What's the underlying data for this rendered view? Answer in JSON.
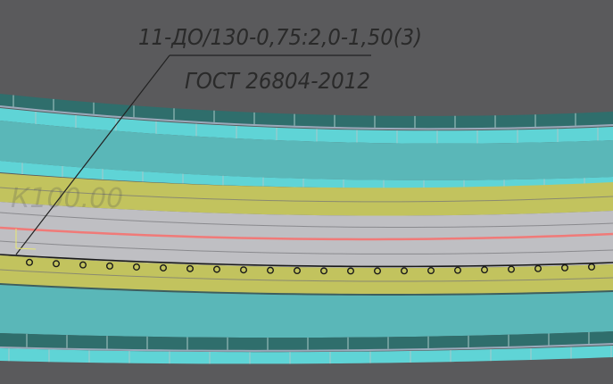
{
  "drawing": {
    "callout_line1": "11-ДО/130-0,75:2,0-1,50(3)",
    "callout_line2": "ГОСТ 26804-2012",
    "station_label": "К100.00"
  },
  "colors": {
    "background": "#5a5a5c",
    "dark_teal": "#2f6e6c",
    "light_cyan": "#5fd4d6",
    "teal": "#5ab7b8",
    "olive": "#c2c35e",
    "road_gray": "#bfbfc3",
    "axis_red": "#f07a78",
    "post_black": "#1a1a1a"
  }
}
